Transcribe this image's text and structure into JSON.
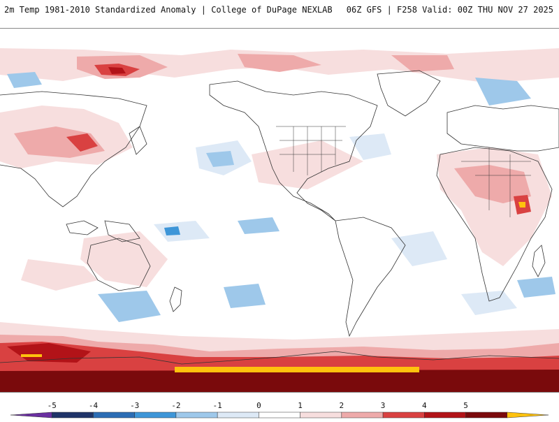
{
  "header": {
    "product_title": "2m Temp 1981-2010 Standardized Anomaly | College of DuPage NEXLAB",
    "run_info": "06Z GFS | F258 Valid: 00Z THU NOV 27 2025"
  },
  "map": {
    "projection_name": "global equirectangular",
    "field": "2m temperature standardized anomaly"
  },
  "legend": {
    "tick_labels": [
      "-5",
      "-4",
      "-3",
      "-2",
      "-1",
      "0",
      "1",
      "2",
      "3",
      "4",
      "5"
    ],
    "bins": [
      {
        "from": -6,
        "to": -5,
        "color": "#6a2fa0"
      },
      {
        "from": -5,
        "to": -4,
        "color": "#1f3468"
      },
      {
        "from": -4,
        "to": -3,
        "color": "#2c6db4"
      },
      {
        "from": -3,
        "to": -2,
        "color": "#3e96d8"
      },
      {
        "from": -2,
        "to": -1,
        "color": "#9ec8ea"
      },
      {
        "from": -1,
        "to": 0,
        "color": "#dde9f6"
      },
      {
        "from": 0,
        "to": 1,
        "color": "#ffffff"
      },
      {
        "from": 1,
        "to": 2,
        "color": "#f7dede"
      },
      {
        "from": 2,
        "to": 3,
        "color": "#eeaaaa"
      },
      {
        "from": 3,
        "to": 4,
        "color": "#d94141"
      },
      {
        "from": 4,
        "to": 5,
        "color": "#b21318"
      },
      {
        "from": 5,
        "to": 6,
        "color": "#7a0a0c"
      },
      {
        "from": 6,
        "to": 7,
        "color": "#ffc20e"
      }
    ]
  },
  "colors": {
    "coastline": "#333333",
    "warm_light": "#f7dede",
    "warm_mid": "#eeaaaa",
    "warm_strong": "#d94141",
    "warm_dark": "#b21318",
    "warm_extreme": "#7a0a0c",
    "cold_light": "#dde9f6",
    "cold_mid": "#9ec8ea",
    "cold_strong": "#3e96d8",
    "yellow": "#ffc20e"
  }
}
